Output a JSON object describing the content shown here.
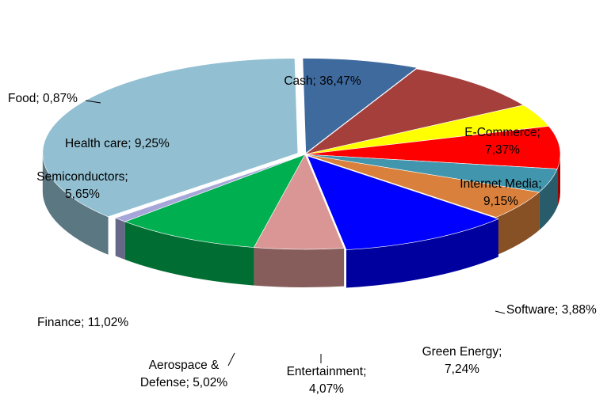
{
  "chart_data": {
    "type": "pie",
    "title": "",
    "style": "3d-exploded-free",
    "slices": [
      {
        "label": "Cash",
        "value": 36.47,
        "display": "Cash; 36,47%",
        "color": "#92c0d2"
      },
      {
        "label": "E-Commerce",
        "value": 7.37,
        "display": "E-Commerce;\n7,37%",
        "color": "#3f6a9e"
      },
      {
        "label": "Internet Media",
        "value": 9.15,
        "display": "Internet Media;\n9,15%",
        "color": "#a53f3c"
      },
      {
        "label": "Software",
        "value": 3.88,
        "display": "Software; 3,88%",
        "color": "#ffff00"
      },
      {
        "label": "Green Energy",
        "value": 7.24,
        "display": "Green Energy;\n7,24%",
        "color": "#ff0000"
      },
      {
        "label": "Entertainment",
        "value": 4.07,
        "display": "Entertainment;\n4,07%",
        "color": "#4195ad"
      },
      {
        "label": "Aerospace & Defense",
        "value": 5.02,
        "display": "Aerospace &\nDefense; 5,02%",
        "color": "#d9813c"
      },
      {
        "label": "Finance",
        "value": 11.02,
        "display": "Finance; 11,02%",
        "color": "#0000ff"
      },
      {
        "label": "Semiconductors",
        "value": 5.65,
        "display": "Semiconductors;\n5,65%",
        "color": "#d99694"
      },
      {
        "label": "Health care",
        "value": 9.25,
        "display": "Health care; 9,25%",
        "color": "#00b050"
      },
      {
        "label": "Food",
        "value": 0.87,
        "display": "Food; 0,87%",
        "color": "#a6a6d9"
      }
    ]
  }
}
